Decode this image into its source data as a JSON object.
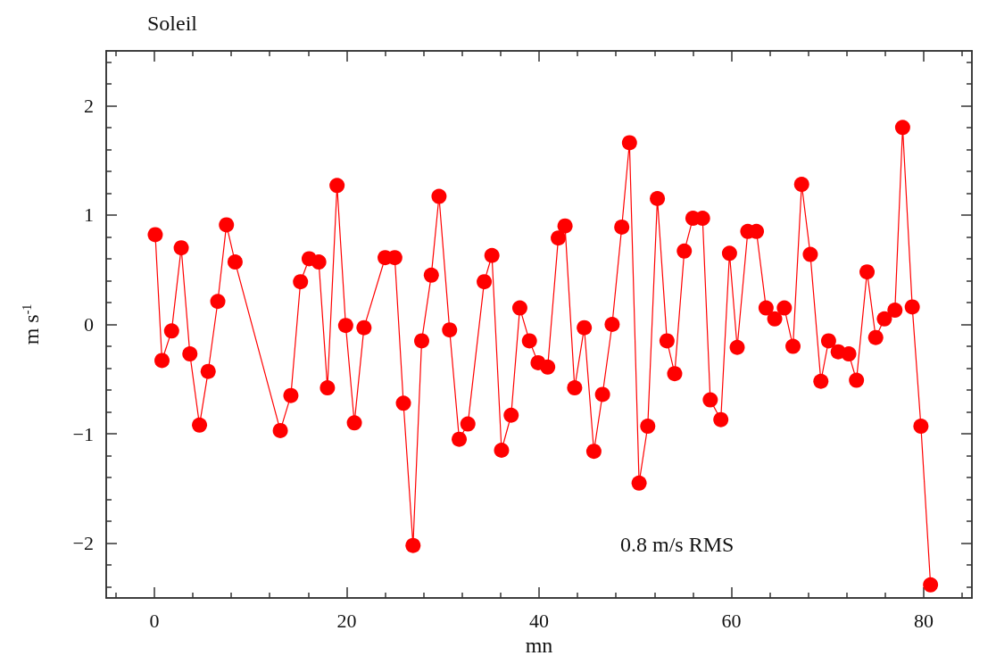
{
  "chart_data": {
    "type": "line",
    "title": "Soleil",
    "xlabel": "mn",
    "ylabel": "m s$^{-1}$",
    "annotations": [
      "0.8 m/s RMS"
    ],
    "marker": "circle",
    "line_style": "solid",
    "xlim": [
      -5,
      85
    ],
    "ylim": [
      -2.5,
      2.5
    ],
    "xticks": [
      {
        "value": -4,
        "label": null
      },
      0,
      {
        "value": 4,
        "label": null
      },
      {
        "value": 8,
        "label": null
      },
      {
        "value": 12,
        "label": null
      },
      {
        "value": 16,
        "label": null
      },
      20,
      {
        "value": 24,
        "label": null
      },
      {
        "value": 28,
        "label": null
      },
      {
        "value": 32,
        "label": null
      },
      {
        "value": 36,
        "label": null
      },
      40,
      {
        "value": 44,
        "label": null
      },
      {
        "value": 48,
        "label": null
      },
      {
        "value": 52,
        "label": null
      },
      {
        "value": 56,
        "label": null
      },
      60,
      {
        "value": 64,
        "label": null
      },
      {
        "value": 68,
        "label": null
      },
      {
        "value": 72,
        "label": null
      },
      {
        "value": 76,
        "label": null
      },
      80,
      {
        "value": 84,
        "label": null
      }
    ],
    "yticks": [
      {
        "value": -2.4,
        "label": null
      },
      {
        "value": -2.2,
        "label": null
      },
      -2,
      {
        "value": -1.8,
        "label": null
      },
      {
        "value": -1.6,
        "label": null
      },
      {
        "value": -1.4,
        "label": null
      },
      {
        "value": -1.2,
        "label": null
      },
      -1,
      {
        "value": -0.8,
        "label": null
      },
      {
        "value": -0.6,
        "label": null
      },
      {
        "value": -0.4,
        "label": null
      },
      {
        "value": -0.2,
        "label": null
      },
      0,
      {
        "value": 0.2,
        "label": null
      },
      {
        "value": 0.4,
        "label": null
      },
      {
        "value": 0.6,
        "label": null
      },
      {
        "value": 0.8,
        "label": null
      },
      1,
      {
        "value": 1.2,
        "label": null
      },
      {
        "value": 1.4,
        "label": null
      },
      {
        "value": 1.6,
        "label": null
      },
      {
        "value": 1.8,
        "label": null
      },
      2,
      {
        "value": 2.2,
        "label": null
      },
      {
        "value": 2.4,
        "label": null
      }
    ],
    "x": [
      0.1,
      0.8,
      1.8,
      2.8,
      3.7,
      4.7,
      5.6,
      6.6,
      7.5,
      8.4,
      13.1,
      14.2,
      15.2,
      16.1,
      17.1,
      18.0,
      19.0,
      19.9,
      20.8,
      21.8,
      24.0,
      25.0,
      25.9,
      26.9,
      27.8,
      28.8,
      29.6,
      30.7,
      31.7,
      32.6,
      34.3,
      35.1,
      36.1,
      37.1,
      38.0,
      39.0,
      39.9,
      40.9,
      42.0,
      42.7,
      43.7,
      44.7,
      45.7,
      46.6,
      47.6,
      48.6,
      49.4,
      50.4,
      51.3,
      52.3,
      53.3,
      54.1,
      55.1,
      56.0,
      57.0,
      57.8,
      58.9,
      59.8,
      60.6,
      61.7,
      62.6,
      63.6,
      64.5,
      65.5,
      66.4,
      67.3,
      68.2,
      69.3,
      70.1,
      71.1,
      72.2,
      73.0,
      74.1,
      75.0,
      75.9,
      77.0,
      77.8,
      78.8,
      79.7,
      80.7
    ],
    "series": [
      {
        "color": "#ff0000",
        "values": [
          0.82,
          -0.33,
          -0.06,
          0.7,
          -0.27,
          -0.92,
          -0.43,
          0.21,
          0.91,
          0.57,
          -0.97,
          -0.65,
          0.39,
          0.6,
          0.57,
          -0.58,
          1.27,
          -0.01,
          -0.9,
          -0.03,
          0.61,
          0.61,
          -0.72,
          -2.02,
          -0.15,
          0.45,
          1.17,
          -0.05,
          -1.05,
          -0.91,
          0.39,
          0.63,
          -1.15,
          -0.83,
          0.15,
          -0.15,
          -0.35,
          -0.39,
          0.79,
          0.9,
          -0.58,
          -0.03,
          -1.16,
          -0.64,
          0.0,
          0.89,
          1.66,
          -1.45,
          -0.93,
          1.15,
          -0.15,
          -0.45,
          0.67,
          0.97,
          0.97,
          -0.69,
          -0.87,
          0.65,
          -0.21,
          0.85,
          0.85,
          0.15,
          0.05,
          0.15,
          -0.2,
          1.28,
          0.64,
          -0.52,
          -0.15,
          -0.25,
          -0.27,
          -0.51,
          0.48,
          -0.12,
          0.05,
          0.13,
          1.8,
          0.16,
          -0.93,
          -2.38
        ]
      }
    ]
  }
}
